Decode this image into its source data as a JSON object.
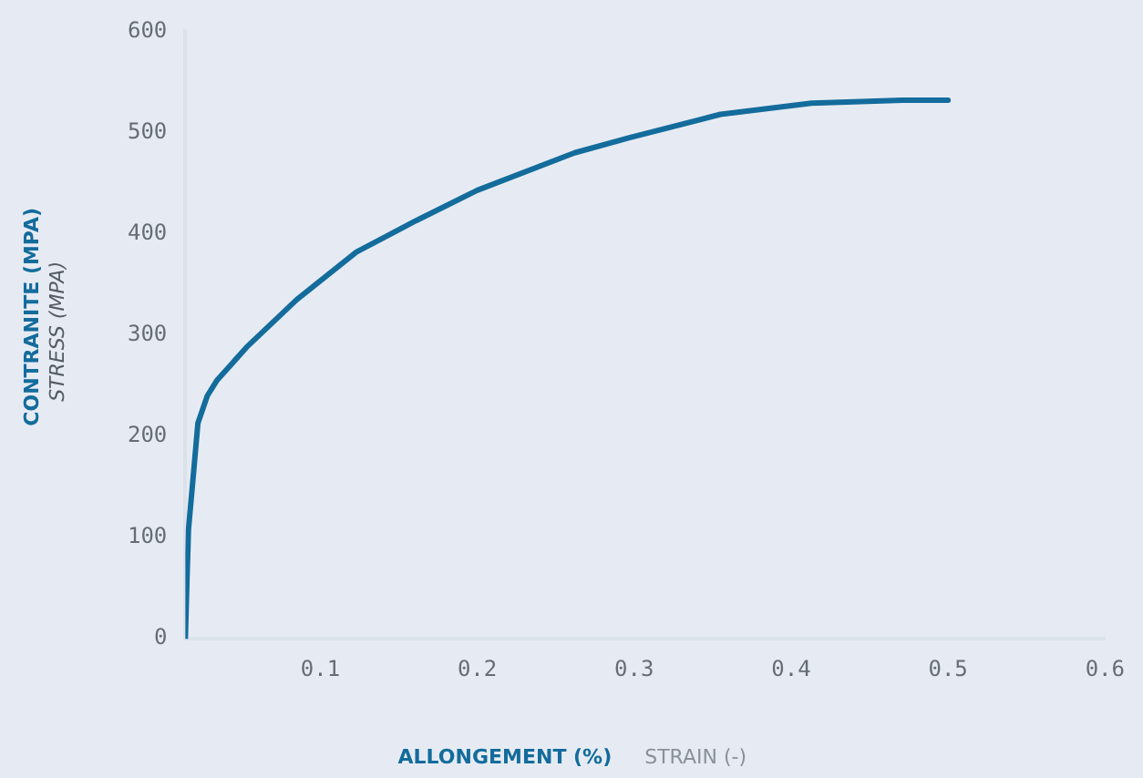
{
  "chart_data": {
    "type": "line",
    "xlabel": "ALLONGEMENT (%)",
    "ylabel": "CONTRANITE (MPA)",
    "annotations": [
      "STRAIN (-)",
      "STRESS (MPA)"
    ],
    "series": [
      {
        "color": "#136c9c",
        "x": [
          0.014,
          0.015,
          0.016,
          0.019,
          0.022,
          0.028,
          0.034,
          0.053,
          0.085,
          0.123,
          0.161,
          0.2,
          0.262,
          0.297,
          0.355,
          0.413,
          0.471,
          0.5
        ],
        "values": [
          0,
          56,
          108,
          160,
          213,
          240,
          255,
          288,
          335,
          382,
          413,
          443,
          480,
          495,
          518,
          529,
          532,
          532
        ]
      }
    ],
    "xlim": [
      0.014,
      0.6
    ],
    "xticks": [
      0.1,
      0.2,
      0.3,
      0.4,
      0.5,
      0.6
    ],
    "ylim": [
      0,
      600
    ],
    "yticks": [
      0,
      100,
      200,
      300,
      400,
      500,
      600
    ],
    "grid": false,
    "legend": false,
    "marker": "none",
    "line_style": "solid"
  }
}
